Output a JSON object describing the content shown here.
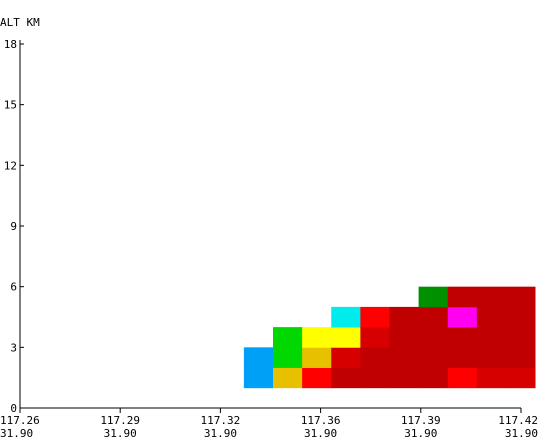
{
  "chart_data": {
    "type": "heatmap",
    "title": "",
    "ylabel": "ALT KM",
    "xlabel": "",
    "ylim": [
      0,
      18
    ],
    "y_ticks": [
      0,
      3,
      6,
      9,
      12,
      15,
      18
    ],
    "x_ticks": [
      {
        "lon": "117.26",
        "lat": "31.90"
      },
      {
        "lon": "117.29",
        "lat": "31.90"
      },
      {
        "lon": "117.32",
        "lat": "31.90"
      },
      {
        "lon": "117.36",
        "lat": "31.90"
      },
      {
        "lon": "117.39",
        "lat": "31.90"
      },
      {
        "lon": "117.42",
        "lat": "31.90"
      }
    ],
    "xlim": [
      117.26,
      117.42
    ],
    "cell_width": 0.0093,
    "cell_height": 1.0,
    "cells": [
      {
        "x": 117.3315,
        "y": 1,
        "color": "#00a0f6"
      },
      {
        "x": 117.3315,
        "y": 2,
        "color": "#00a0f6"
      },
      {
        "x": 117.3408,
        "y": 1,
        "color": "#e7c000"
      },
      {
        "x": 117.3408,
        "y": 2,
        "color": "#00d800"
      },
      {
        "x": 117.3408,
        "y": 3,
        "color": "#00d800"
      },
      {
        "x": 117.3501,
        "y": 1,
        "color": "#ff0000"
      },
      {
        "x": 117.3501,
        "y": 2,
        "color": "#e7c000"
      },
      {
        "x": 117.3501,
        "y": 3,
        "color": "#ffff00"
      },
      {
        "x": 117.3594,
        "y": 1,
        "color": "#c00000"
      },
      {
        "x": 117.3594,
        "y": 2,
        "color": "#d60000"
      },
      {
        "x": 117.3594,
        "y": 3,
        "color": "#ffff00"
      },
      {
        "x": 117.3594,
        "y": 4,
        "color": "#00ecec"
      },
      {
        "x": 117.3687,
        "y": 1,
        "color": "#c00000"
      },
      {
        "x": 117.3687,
        "y": 2,
        "color": "#c00000"
      },
      {
        "x": 117.3687,
        "y": 3,
        "color": "#d60000"
      },
      {
        "x": 117.3687,
        "y": 4,
        "color": "#ff0000"
      },
      {
        "x": 117.378,
        "y": 1,
        "color": "#c00000"
      },
      {
        "x": 117.378,
        "y": 2,
        "color": "#c00000"
      },
      {
        "x": 117.378,
        "y": 3,
        "color": "#c00000"
      },
      {
        "x": 117.378,
        "y": 4,
        "color": "#c00000"
      },
      {
        "x": 117.3873,
        "y": 1,
        "color": "#c00000"
      },
      {
        "x": 117.3873,
        "y": 2,
        "color": "#c00000"
      },
      {
        "x": 117.3873,
        "y": 3,
        "color": "#c00000"
      },
      {
        "x": 117.3873,
        "y": 4,
        "color": "#c00000"
      },
      {
        "x": 117.3873,
        "y": 5,
        "color": "#009000"
      },
      {
        "x": 117.3966,
        "y": 1,
        "color": "#ff0000"
      },
      {
        "x": 117.3966,
        "y": 2,
        "color": "#c00000"
      },
      {
        "x": 117.3966,
        "y": 3,
        "color": "#c00000"
      },
      {
        "x": 117.3966,
        "y": 4,
        "color": "#ff00f0"
      },
      {
        "x": 117.3966,
        "y": 5,
        "color": "#c00000"
      },
      {
        "x": 117.4059,
        "y": 1,
        "color": "#d60000"
      },
      {
        "x": 117.4059,
        "y": 2,
        "color": "#c00000"
      },
      {
        "x": 117.4059,
        "y": 3,
        "color": "#c00000"
      },
      {
        "x": 117.4059,
        "y": 4,
        "color": "#c00000"
      },
      {
        "x": 117.4059,
        "y": 5,
        "color": "#c00000"
      },
      {
        "x": 117.4152,
        "y": 1,
        "color": "#d60000"
      },
      {
        "x": 117.4152,
        "y": 2,
        "color": "#c00000"
      },
      {
        "x": 117.4152,
        "y": 3,
        "color": "#c00000"
      },
      {
        "x": 117.4152,
        "y": 4,
        "color": "#c00000"
      },
      {
        "x": 117.4152,
        "y": 5,
        "color": "#c00000"
      }
    ],
    "grid": false
  }
}
